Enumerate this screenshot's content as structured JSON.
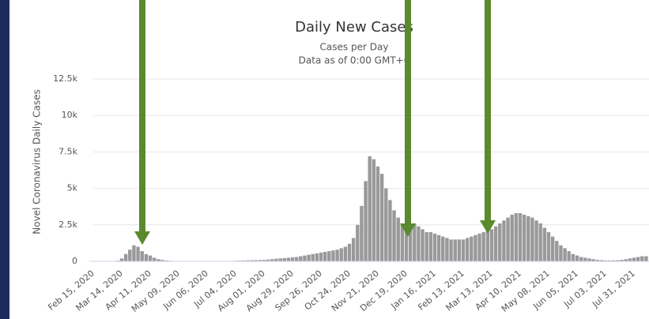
{
  "chart_data": {
    "type": "bar",
    "title": "Daily New Cases",
    "subtitle": "Cases per Day",
    "note": "Data as of 0:00 GMT+0",
    "y_label": "Novel Coronavirus Daily Cases",
    "color": "#999999",
    "grid": true,
    "ylim": [
      0,
      12500
    ],
    "yticks": [
      0,
      {
        "value": 2500,
        "label": "2.5k"
      },
      {
        "value": 5000,
        "label": "5k"
      },
      {
        "value": 7500,
        "label": "7.5k"
      },
      {
        "value": 10000,
        "label": "10k"
      },
      {
        "value": 12500,
        "label": "12.5k"
      }
    ],
    "categories": [
      "Feb 15, 2020",
      null,
      null,
      null,
      null,
      null,
      null,
      "Mar 14, 2020",
      null,
      null,
      null,
      null,
      null,
      null,
      "Apr 11, 2020",
      null,
      null,
      null,
      null,
      null,
      null,
      "May 09, 2020",
      null,
      null,
      null,
      null,
      null,
      null,
      "Jun 06, 2020",
      null,
      null,
      null,
      null,
      null,
      null,
      "Jul 04, 2020",
      null,
      null,
      null,
      null,
      null,
      null,
      "Aug 01, 2020",
      null,
      null,
      null,
      null,
      null,
      null,
      "Aug 29, 2020",
      null,
      null,
      null,
      null,
      null,
      null,
      "Sep 26, 2020",
      null,
      null,
      null,
      null,
      null,
      null,
      "Oct 24, 2020",
      null,
      null,
      null,
      null,
      null,
      null,
      "Nov 21, 2020",
      null,
      null,
      null,
      null,
      null,
      null,
      "Dec 19, 2020",
      null,
      null,
      null,
      null,
      null,
      null,
      "Jan 16, 2021",
      null,
      null,
      null,
      null,
      null,
      null,
      "Feb 13, 2021",
      null,
      null,
      null,
      null,
      null,
      null,
      "Mar 13, 2021",
      null,
      null,
      null,
      null,
      null,
      null,
      "Apr 10, 2021",
      null,
      null,
      null,
      null,
      null,
      null,
      "May 08, 2021",
      null,
      null,
      null,
      null,
      null,
      null,
      "Jun 05, 2021",
      null,
      null,
      null,
      null,
      null,
      null,
      "Jul 03, 2021",
      null,
      null,
      null,
      null,
      null,
      null,
      "Jul 31, 2021",
      null,
      null,
      null
    ],
    "values": [
      0,
      0,
      0,
      0,
      0,
      0,
      50,
      200,
      500,
      800,
      1100,
      1000,
      700,
      500,
      400,
      250,
      150,
      100,
      60,
      40,
      30,
      20,
      15,
      10,
      10,
      10,
      10,
      10,
      10,
      10,
      10,
      15,
      20,
      20,
      30,
      40,
      50,
      60,
      70,
      80,
      80,
      90,
      100,
      120,
      150,
      180,
      200,
      220,
      250,
      280,
      300,
      350,
      400,
      450,
      500,
      550,
      600,
      650,
      700,
      750,
      800,
      900,
      1000,
      1200,
      1600,
      2500,
      3800,
      5500,
      7200,
      7000,
      6500,
      6000,
      5000,
      4200,
      3500,
      3000,
      2500,
      2200,
      2500,
      2600,
      2400,
      2200,
      2000,
      2000,
      1900,
      1800,
      1700,
      1600,
      1500,
      1500,
      1500,
      1500,
      1600,
      1700,
      1800,
      1900,
      2000,
      2100,
      2200,
      2400,
      2600,
      2800,
      3000,
      3200,
      3300,
      3300,
      3200,
      3100,
      3000,
      2800,
      2600,
      2300,
      2000,
      1700,
      1400,
      1100,
      900,
      700,
      500,
      400,
      300,
      250,
      200,
      150,
      100,
      80,
      60,
      60,
      70,
      80,
      100,
      150,
      200,
      250,
      300,
      350,
      350
    ]
  }
}
